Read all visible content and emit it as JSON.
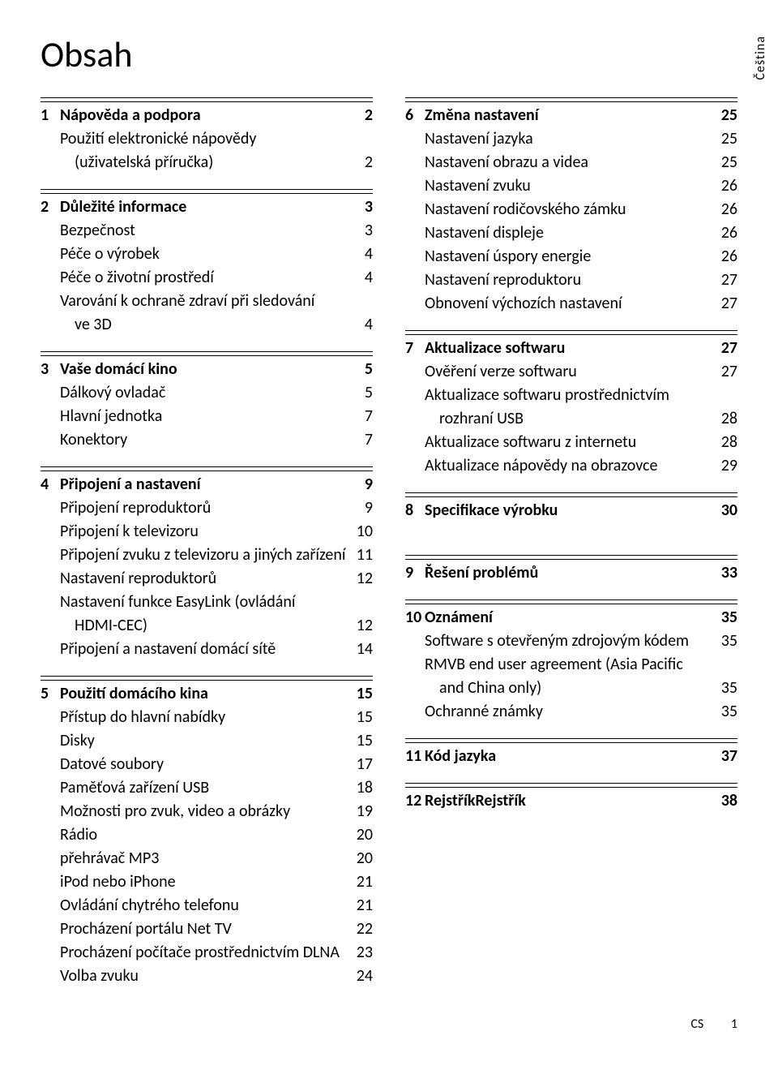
{
  "title": "Obsah",
  "language_tab": "Čeština",
  "footer": {
    "lang": "CS",
    "page": "1"
  },
  "left": [
    {
      "num": "1",
      "head": {
        "label": "Nápověda a podpora",
        "page": "2"
      },
      "items": [
        {
          "label": "Použití elektronické nápovědy",
          "page": ""
        },
        {
          "label": "(uživatelská příručka)",
          "page": "2",
          "indent": true
        }
      ]
    },
    {
      "num": "2",
      "head": {
        "label": "Důležité informace",
        "page": "3"
      },
      "items": [
        {
          "label": "Bezpečnost",
          "page": "3"
        },
        {
          "label": "Péče o výrobek",
          "page": "4"
        },
        {
          "label": "Péče o životní prostředí",
          "page": "4"
        },
        {
          "label": "Varování k ochraně zdraví při sledování",
          "page": ""
        },
        {
          "label": "ve 3D",
          "page": "4",
          "indent": true
        }
      ]
    },
    {
      "num": "3",
      "head": {
        "label": "Vaše domácí kino",
        "page": "5"
      },
      "items": [
        {
          "label": "Dálkový ovladač",
          "page": "5"
        },
        {
          "label": "Hlavní jednotka",
          "page": "7"
        },
        {
          "label": "Konektory",
          "page": "7"
        }
      ]
    },
    {
      "num": "4",
      "head": {
        "label": "Připojení a nastavení",
        "page": "9"
      },
      "items": [
        {
          "label": "Připojení reproduktorů",
          "page": "9"
        },
        {
          "label": "Připojení k televizoru",
          "page": "10"
        },
        {
          "label": "Připojení zvuku z televizoru a jiných zařízení",
          "page": "11"
        },
        {
          "label": "Nastavení reproduktorů",
          "page": "12"
        },
        {
          "label": "Nastavení funkce EasyLink (ovládání",
          "page": ""
        },
        {
          "label": "HDMI-CEC)",
          "page": "12",
          "indent": true
        },
        {
          "label": "Připojení a nastavení domácí sítě",
          "page": "14"
        }
      ]
    },
    {
      "num": "5",
      "head": {
        "label": "Použití domácího kina",
        "page": "15"
      },
      "items": [
        {
          "label": "Přístup do hlavní nabídky",
          "page": "15"
        },
        {
          "label": "Disky",
          "page": "15"
        },
        {
          "label": "Datové soubory",
          "page": "17"
        },
        {
          "label": "Paměťová zařízení USB",
          "page": "18"
        },
        {
          "label": "Možnosti pro zvuk, video a obrázky",
          "page": "19"
        },
        {
          "label": "Rádio",
          "page": "20"
        },
        {
          "label": "přehrávač MP3",
          "page": "20"
        },
        {
          "label": "iPod nebo iPhone",
          "page": "21"
        },
        {
          "label": "Ovládání chytrého telefonu",
          "page": "21"
        },
        {
          "label": "Procházení portálu Net TV",
          "page": "22"
        },
        {
          "label": "Procházení počítače prostřednictvím DLNA",
          "page": "23"
        },
        {
          "label": "Volba zvuku",
          "page": "24"
        }
      ]
    }
  ],
  "right": [
    {
      "num": "6",
      "head": {
        "label": "Změna nastavení",
        "page": "25"
      },
      "items": [
        {
          "label": "Nastavení jazyka",
          "page": "25"
        },
        {
          "label": "Nastavení obrazu a videa",
          "page": "25"
        },
        {
          "label": "Nastavení zvuku",
          "page": "26"
        },
        {
          "label": "Nastavení rodičovského zámku",
          "page": "26"
        },
        {
          "label": "Nastavení displeje",
          "page": "26"
        },
        {
          "label": "Nastavení úspory energie",
          "page": "26"
        },
        {
          "label": "Nastavení reproduktoru",
          "page": "27"
        },
        {
          "label": "Obnovení výchozích nastavení",
          "page": "27"
        }
      ]
    },
    {
      "num": "7",
      "head": {
        "label": "Aktualizace softwaru",
        "page": "27"
      },
      "items": [
        {
          "label": "Ověření verze softwaru",
          "page": "27"
        },
        {
          "label": "Aktualizace softwaru prostřednictvím",
          "page": ""
        },
        {
          "label": "rozhraní USB",
          "page": "28",
          "indent": true
        },
        {
          "label": "Aktualizace softwaru z internetu",
          "page": "28"
        },
        {
          "label": "Aktualizace nápovědy na obrazovce",
          "page": "29"
        }
      ]
    },
    {
      "num": "8",
      "head": {
        "label": "Specifikace výrobku",
        "page": "30"
      },
      "items": []
    },
    {
      "num": "9",
      "head": {
        "label": "Řešení problémů",
        "page": "33"
      },
      "items": [],
      "gap": true
    },
    {
      "num": "10",
      "head": {
        "label": "Oznámení",
        "page": "35"
      },
      "items": [
        {
          "label": "Software s otevřeným zdrojovým kódem",
          "page": "35"
        },
        {
          "label": "RMVB end user agreement (Asia Pacific",
          "page": ""
        },
        {
          "label": "and China only)",
          "page": "35",
          "indent": true
        },
        {
          "label": "Ochranné známky",
          "page": "35"
        }
      ]
    },
    {
      "num": "11",
      "head": {
        "label": "Kód jazyka",
        "page": "37"
      },
      "items": []
    },
    {
      "num": "12",
      "head": {
        "label": "RejstříkRejstřík",
        "page": "38"
      },
      "items": []
    }
  ]
}
